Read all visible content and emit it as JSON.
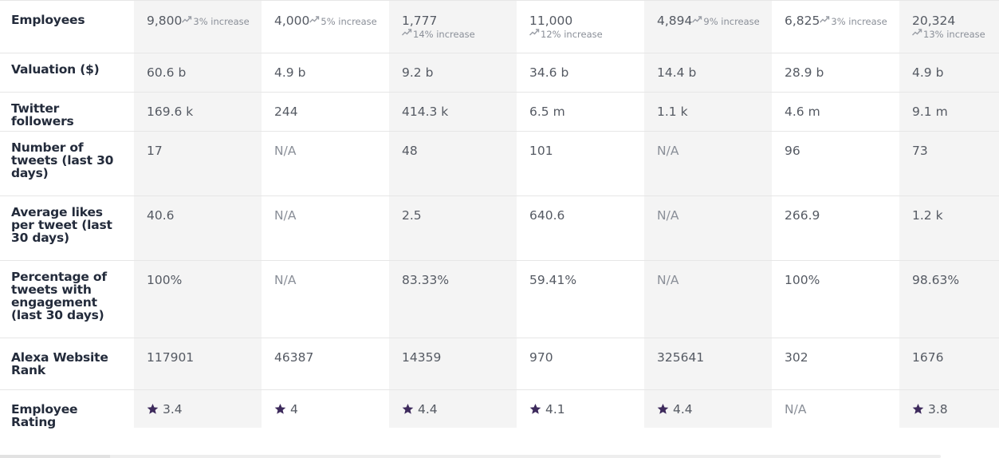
{
  "rows": {
    "employees": {
      "label": "Employees",
      "cells": [
        {
          "value": "9,800",
          "change": "3% increase"
        },
        {
          "value": "4,000",
          "change": "5% increase"
        },
        {
          "value": "1,777",
          "change": "14% increase"
        },
        {
          "value": "11,000",
          "change": "12% increase"
        },
        {
          "value": "4,894",
          "change": "9% increase"
        },
        {
          "value": "6,825",
          "change": "3% increase"
        },
        {
          "value": "20,324",
          "change": "13% increase"
        }
      ]
    },
    "valuation": {
      "label": "Valuation ($)",
      "cells": [
        "60.6 b",
        "4.9 b",
        "9.2 b",
        "34.6 b",
        "14.4 b",
        "28.9 b",
        "4.9 b"
      ]
    },
    "twitter_followers": {
      "label": "Twitter followers",
      "cells": [
        "169.6 k",
        "244",
        "414.3 k",
        "6.5 m",
        "1.1 k",
        "4.6 m",
        "9.1 m"
      ]
    },
    "tweets_30": {
      "label": "Number of tweets (last 30 days)",
      "cells": [
        "17",
        "N/A",
        "48",
        "101",
        "N/A",
        "96",
        "73"
      ]
    },
    "avg_likes": {
      "label": "Average likes per tweet (last 30 days)",
      "cells": [
        "40.6",
        "N/A",
        "2.5",
        "640.6",
        "N/A",
        "266.9",
        "1.2 k"
      ]
    },
    "engagement": {
      "label": "Percentage of tweets with engagement (last 30 days)",
      "cells": [
        "100%",
        "N/A",
        "83.33%",
        "59.41%",
        "N/A",
        "100%",
        "98.63%"
      ]
    },
    "alexa_rank": {
      "label": "Alexa Website Rank",
      "cells": [
        "117901",
        "46387",
        "14359",
        "970",
        "325641",
        "302",
        "1676"
      ]
    },
    "employee_rating": {
      "label": "Employee Rating",
      "cells": [
        {
          "value": "3.4",
          "icon": "star-icon"
        },
        {
          "value": "4",
          "icon": "star-icon"
        },
        {
          "value": "4.4",
          "icon": "star-icon"
        },
        {
          "value": "4.1",
          "icon": "star-icon"
        },
        {
          "value": "4.4",
          "icon": "star-icon"
        },
        {
          "value": "N/A"
        },
        {
          "value": "3.8",
          "icon": "star-icon"
        }
      ]
    }
  },
  "colors": {
    "label_text": "#232b3b",
    "value_text": "#555a63",
    "muted_text": "#8a8f98",
    "alt_column_bg": "#f4f4f4",
    "star": "#3d2a5c",
    "trend_icon": "#9a9ea6"
  }
}
